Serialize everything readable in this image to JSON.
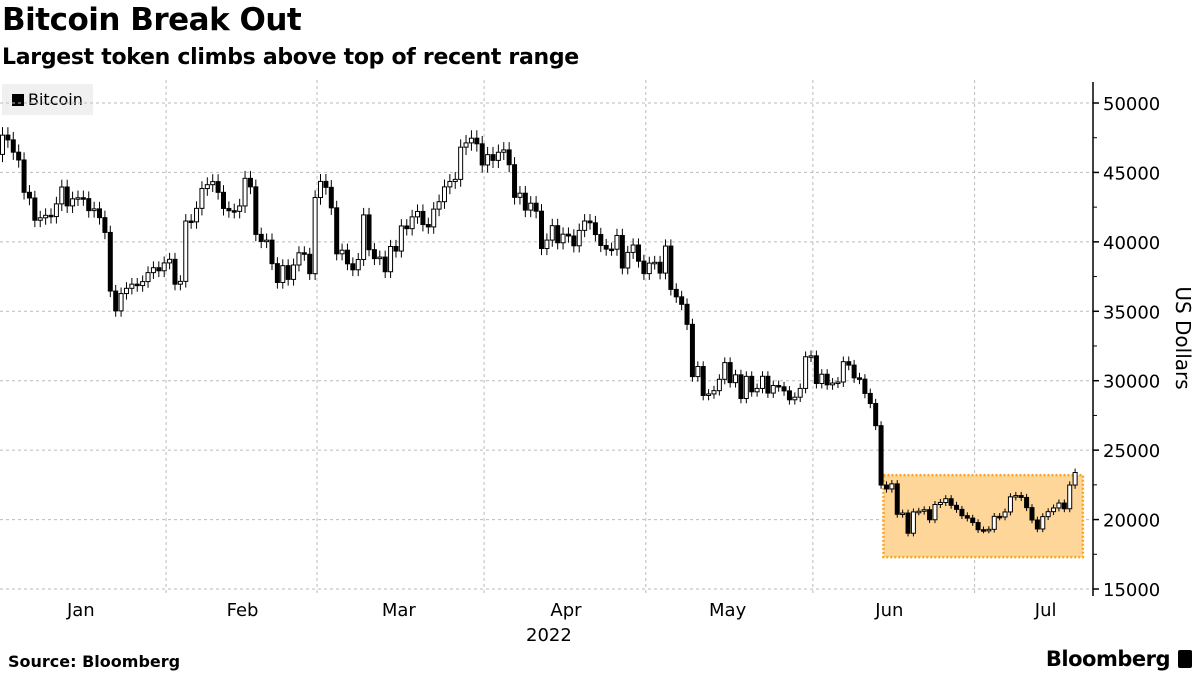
{
  "header": {
    "title": "Bitcoin Break Out",
    "subtitle": "Largest token climbs above top of recent range"
  },
  "footer": {
    "source": "Source: Bloomberg",
    "brand": "Bloomberg"
  },
  "chart_data": {
    "type": "candlestick",
    "title": "Bitcoin Break Out",
    "subtitle": "Largest token climbs above top of recent range",
    "legend": [
      {
        "name": "Bitcoin",
        "color": "#000000",
        "placement": "top-left"
      }
    ],
    "ylabel": "US Dollars",
    "xlabel": "2022",
    "ylim": [
      15000,
      51000
    ],
    "yticks": [
      15000,
      20000,
      25000,
      30000,
      35000,
      40000,
      45000,
      50000
    ],
    "ytick_labels": [
      "15000",
      "20000",
      "25000",
      "30000",
      "35000",
      "40000",
      "45000",
      "50000"
    ],
    "x_start": "2022-01-01",
    "x_days": 201,
    "month_gridlines_day": [
      31,
      59,
      90,
      120,
      151,
      181
    ],
    "months": [
      {
        "label": "Jan",
        "day": 15
      },
      {
        "label": "Feb",
        "day": 45
      },
      {
        "label": "Mar",
        "day": 74
      },
      {
        "label": "Apr",
        "day": 105
      },
      {
        "label": "May",
        "day": 135
      },
      {
        "label": "Jun",
        "day": 165
      },
      {
        "label": "Jul",
        "day": 194
      }
    ],
    "year_label": {
      "label": "2022",
      "day": 105
    },
    "highlight_range": {
      "from_day": 164,
      "to_day": 201,
      "low": 17300,
      "high": 23200,
      "color": "#ffd699",
      "border": "#f5a623"
    },
    "first_open": 46300,
    "closes": [
      47686,
      47345,
      46458,
      45897,
      43569,
      43160,
      41557,
      41733,
      41911,
      41821,
      42735,
      43949,
      42591,
      43099,
      43177,
      43113,
      42250,
      42375,
      41744,
      40680,
      36457,
      35030,
      36276,
      36654,
      36954,
      36852,
      37138,
      37784,
      38138,
      37917,
      38483,
      38743,
      36952,
      37154,
      41500,
      41441,
      42412,
      43840,
      44118,
      44338,
      43565,
      42407,
      42244,
      42197,
      42586,
      44575,
      43961,
      40538,
      40030,
      40122,
      38431,
      37075,
      38286,
      37296,
      38332,
      39214,
      39105,
      37709,
      43193,
      44354,
      43925,
      42451,
      39138,
      39400,
      38420,
      37988,
      38730,
      41941,
      39437,
      38794,
      38904,
      37849,
      39666,
      39338,
      41143,
      40951,
      41801,
      42190,
      41247,
      41077,
      42358,
      42892,
      43960,
      44348,
      44500,
      46820,
      47128,
      47465,
      47062,
      45538,
      46281,
      45868,
      46453,
      46622,
      45555,
      43206,
      43503,
      42287,
      42782,
      42207,
      39521,
      40127,
      41166,
      39935,
      40553,
      40424,
      39716,
      40827,
      41502,
      41374,
      40527,
      39741,
      39478,
      39469,
      40458,
      38117,
      39241,
      39773,
      38609,
      37714,
      38469,
      38529,
      37750,
      39698,
      36575,
      36040,
      35501,
      34059,
      30296,
      31022,
      28936,
      29047,
      29283,
      30101,
      31305,
      29862,
      30425,
      28720,
      30314,
      29201,
      29445,
      30318,
      29110,
      29655,
      29562,
      29267,
      28627,
      28814,
      29445,
      31726,
      31792,
      29799,
      30467,
      29704,
      29832,
      29906,
      31370,
      31125,
      30206,
      30112,
      29083,
      28360,
      26762,
      22487,
      22206,
      22572,
      20381,
      20471,
      19017,
      20553,
      20599,
      20710,
      19987,
      21085,
      21231,
      21502,
      21027,
      20735,
      20280,
      20104,
      19785,
      19269,
      19243,
      19297,
      20231,
      20190,
      20548,
      21637,
      21731,
      21592,
      20860,
      19970,
      19323,
      20212,
      20569,
      20836,
      21190,
      20779,
      22485,
      23389
    ]
  }
}
